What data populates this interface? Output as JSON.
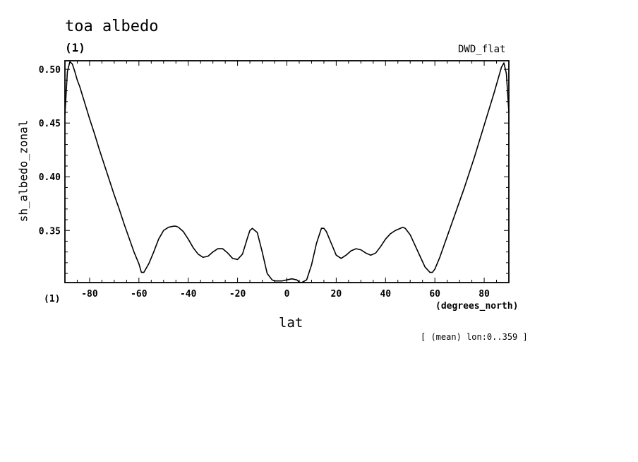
{
  "header": {
    "title": "toa albedo",
    "units": "(1)",
    "dataset": "DWD_flat"
  },
  "footer": {
    "y_units_label": "(1)",
    "x_units_label": "(degrees_north)",
    "xlabel": "lat",
    "note": "[ (mean) lon:0..359 ]"
  },
  "chart_data": {
    "type": "line",
    "title": "toa albedo",
    "xlabel": "lat",
    "ylabel": "sh_albedo_zonal",
    "xlim": [
      -90,
      90
    ],
    "ylim": [
      0.3015,
      0.508
    ],
    "xticks": [
      -80,
      -60,
      -40,
      -20,
      0,
      20,
      40,
      60,
      80
    ],
    "xtick_labels": [
      "-80",
      "-60",
      "-40",
      "-20",
      "0",
      "20",
      "40",
      "60",
      "80"
    ],
    "yticks": [
      0.35,
      0.4,
      0.45,
      0.5
    ],
    "ytick_labels": [
      "0.35",
      "0.40",
      "0.45",
      "0.50"
    ],
    "grid": false,
    "series": [
      {
        "x": [
          -90,
          -89,
          -88,
          -87,
          -86,
          -85,
          -84,
          -82,
          -80,
          -78,
          -76,
          -74,
          -72,
          -70,
          -68,
          -66,
          -64,
          -62,
          -60,
          -59,
          -58,
          -56,
          -54,
          -52,
          -50,
          -48,
          -46,
          -45,
          -44,
          -42,
          -40,
          -38,
          -36,
          -34,
          -32,
          -30,
          -28,
          -26,
          -24,
          -22,
          -20,
          -18,
          -16,
          -15,
          -14,
          -12,
          -10,
          -8,
          -6,
          -5,
          -4,
          -2,
          0,
          2,
          4,
          5,
          6,
          8,
          10,
          12,
          14,
          15,
          16,
          18,
          20,
          22,
          24,
          26,
          28,
          30,
          32,
          34,
          36,
          38,
          40,
          42,
          44,
          46,
          47,
          48,
          50,
          52,
          54,
          56,
          58,
          59,
          60,
          62,
          64,
          66,
          68,
          70,
          72,
          74,
          76,
          78,
          80,
          82,
          84,
          85,
          86,
          87,
          88,
          89,
          90
        ],
        "y": [
          0.458,
          0.498,
          0.507,
          0.505,
          0.498,
          0.49,
          0.484,
          0.469,
          0.454,
          0.44,
          0.425,
          0.411,
          0.397,
          0.383,
          0.37,
          0.356,
          0.343,
          0.33,
          0.319,
          0.311,
          0.311,
          0.319,
          0.33,
          0.342,
          0.35,
          0.353,
          0.354,
          0.354,
          0.353,
          0.349,
          0.342,
          0.334,
          0.328,
          0.325,
          0.326,
          0.33,
          0.333,
          0.333,
          0.329,
          0.324,
          0.323,
          0.328,
          0.343,
          0.35,
          0.352,
          0.348,
          0.33,
          0.31,
          0.304,
          0.303,
          0.303,
          0.303,
          0.304,
          0.305,
          0.304,
          0.302,
          0.3015,
          0.304,
          0.318,
          0.338,
          0.352,
          0.352,
          0.349,
          0.338,
          0.327,
          0.324,
          0.327,
          0.331,
          0.333,
          0.332,
          0.329,
          0.327,
          0.329,
          0.335,
          0.342,
          0.347,
          0.35,
          0.352,
          0.353,
          0.352,
          0.346,
          0.336,
          0.326,
          0.316,
          0.311,
          0.311,
          0.314,
          0.325,
          0.338,
          0.351,
          0.364,
          0.377,
          0.39,
          0.404,
          0.418,
          0.433,
          0.448,
          0.463,
          0.478,
          0.486,
          0.494,
          0.502,
          0.506,
          0.496,
          0.46
        ]
      }
    ]
  }
}
